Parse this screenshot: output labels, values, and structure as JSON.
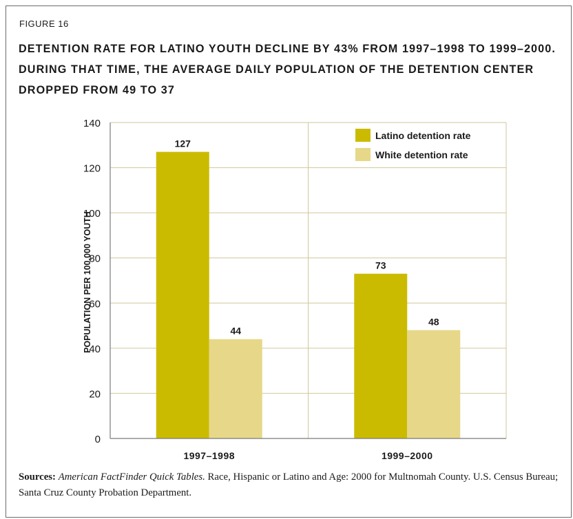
{
  "figure_label": "FIGURE 16",
  "title_lines": [
    "DETENTION RATE FOR LATINO YOUTH DECLINE BY 43% FROM 1997–1998 TO 1999–2000.",
    "DURING THAT TIME, THE AVERAGE DAILY POPULATION OF THE DETENTION CENTER",
    "DROPPED FROM 49 TO 37"
  ],
  "colors": {
    "latino": "#cbbb00",
    "white": "#e6d888",
    "grid": "#cfc79a",
    "axis": "#7a7a7a",
    "text": "#1a1a1a"
  },
  "chart_data": {
    "type": "bar",
    "categories": [
      "1997–1998",
      "1999–2000"
    ],
    "series": [
      {
        "name": "Latino detention rate",
        "values": [
          127,
          73
        ],
        "data_labels": [
          "127",
          "73"
        ]
      },
      {
        "name": "White detention rate",
        "values": [
          44,
          48
        ],
        "data_labels": [
          "44",
          "48"
        ]
      }
    ],
    "ylabel": "POPULATION PER 100,000 YOUTH",
    "ylim": [
      0,
      140
    ],
    "yticks": [
      0,
      20,
      40,
      60,
      80,
      100,
      120,
      140
    ],
    "grid": "horizontal",
    "legend_position": "top-right"
  },
  "source": {
    "label": "Sources:",
    "publication": "American FactFinder Quick Tables.",
    "rest": " Race, Hispanic or Latino and Age: 2000 for Multnomah County. U.S. Census Bureau; Santa Cruz County Probation Department."
  }
}
